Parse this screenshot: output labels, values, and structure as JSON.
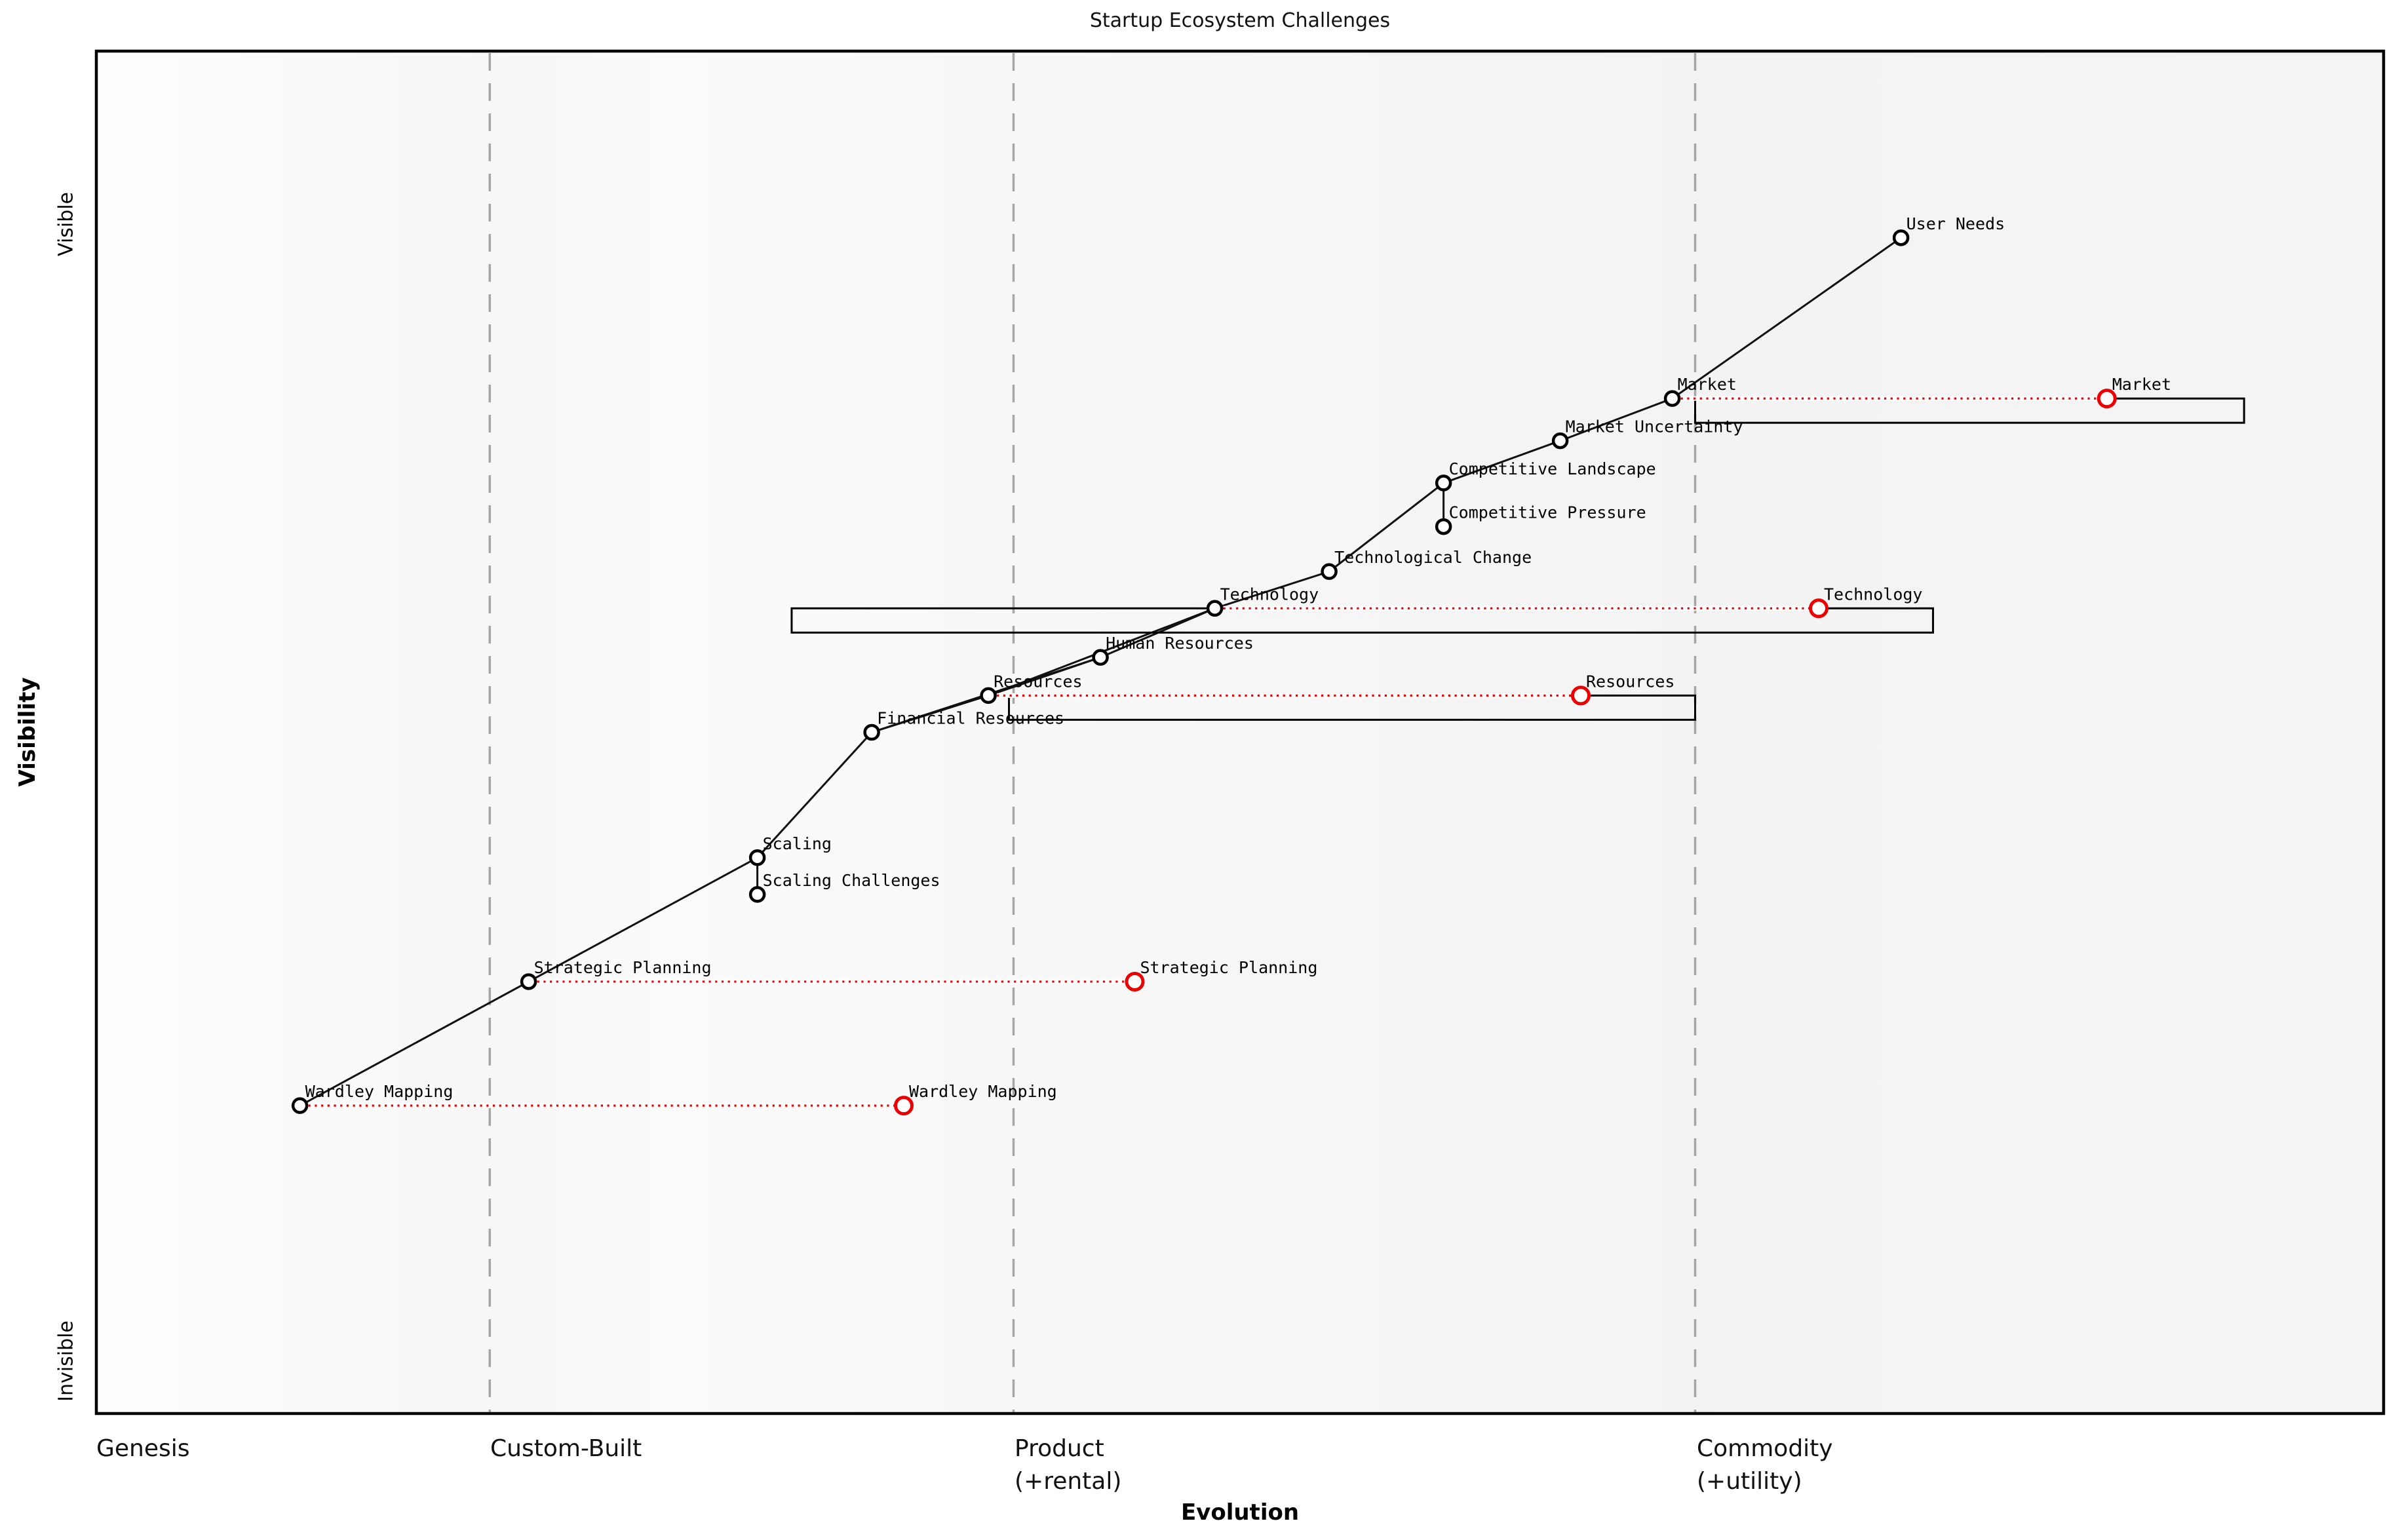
{
  "title": "Startup Ecosystem Challenges",
  "axis": {
    "x_label": "Evolution",
    "y_label": "Visibility",
    "y_tick_top": "Visible",
    "y_tick_bottom": "Invisible",
    "stages": [
      "Genesis",
      "Custom-Built",
      "Product\n(+rental)",
      "Commodity\n(+utility)"
    ]
  },
  "chart_data": {
    "type": "wardley-map",
    "title": "Startup Ecosystem Challenges",
    "xlabel": "Evolution",
    "ylabel": "Visibility",
    "x_range": [
      0,
      1
    ],
    "y_range": [
      0,
      1
    ],
    "grid": "vertical-stage-boundaries",
    "stages": [
      {
        "label": "Genesis",
        "x": 0.0
      },
      {
        "label": "Custom-Built",
        "x": 0.172
      },
      {
        "label": "Product\n(+rental)",
        "x": 0.401
      },
      {
        "label": "Commodity\n(+utility)",
        "x": 0.699
      }
    ],
    "y_ticks": [
      {
        "label": "Visible",
        "y": 0.873
      },
      {
        "label": "Invisible",
        "y": 0.039
      }
    ],
    "nodes": [
      {
        "id": "user-needs",
        "label": "User Needs",
        "evolution": 0.789,
        "visibility": 0.863
      },
      {
        "id": "market",
        "label": "Market",
        "evolution": 0.689,
        "visibility": 0.745
      },
      {
        "id": "market-uncertainty",
        "label": "Market Uncertainty",
        "evolution": 0.64,
        "visibility": 0.714
      },
      {
        "id": "competitive-landscape",
        "label": "Competitive Landscape",
        "evolution": 0.589,
        "visibility": 0.683
      },
      {
        "id": "competitive-pressure",
        "label": "Competitive Pressure",
        "evolution": 0.589,
        "visibility": 0.651
      },
      {
        "id": "technological-change",
        "label": "Technological Change",
        "evolution": 0.539,
        "visibility": 0.618
      },
      {
        "id": "technology",
        "label": "Technology",
        "evolution": 0.489,
        "visibility": 0.591
      },
      {
        "id": "human-resources",
        "label": "Human Resources",
        "evolution": 0.439,
        "visibility": 0.555
      },
      {
        "id": "resources",
        "label": "Resources",
        "evolution": 0.39,
        "visibility": 0.527
      },
      {
        "id": "financial-resources",
        "label": "Financial Resources",
        "evolution": 0.339,
        "visibility": 0.5
      },
      {
        "id": "scaling",
        "label": "Scaling",
        "evolution": 0.289,
        "visibility": 0.408
      },
      {
        "id": "scaling-challenges",
        "label": "Scaling Challenges",
        "evolution": 0.289,
        "visibility": 0.381
      },
      {
        "id": "strategic-planning",
        "label": "Strategic Planning",
        "evolution": 0.189,
        "visibility": 0.317
      },
      {
        "id": "wardley-mapping",
        "label": "Wardley Mapping",
        "evolution": 0.089,
        "visibility": 0.226
      }
    ],
    "edges": [
      [
        "wardley-mapping",
        "strategic-planning"
      ],
      [
        "strategic-planning",
        "scaling"
      ],
      [
        "scaling",
        "scaling-challenges"
      ],
      [
        "scaling",
        "financial-resources"
      ],
      [
        "financial-resources",
        "resources"
      ],
      [
        "financial-resources",
        "human-resources"
      ],
      [
        "resources",
        "human-resources"
      ],
      [
        "resources",
        "technology"
      ],
      [
        "human-resources",
        "technology"
      ],
      [
        "technology",
        "technological-change"
      ],
      [
        "technological-change",
        "competitive-landscape"
      ],
      [
        "competitive-landscape",
        "competitive-pressure"
      ],
      [
        "competitive-landscape",
        "market-uncertainty"
      ],
      [
        "market-uncertainty",
        "market"
      ],
      [
        "market",
        "user-needs"
      ]
    ],
    "evolutions": [
      {
        "id": "market",
        "label": "Market",
        "to_evolution": 0.879
      },
      {
        "id": "technology",
        "label": "Technology",
        "to_evolution": 0.753
      },
      {
        "id": "resources",
        "label": "Resources",
        "to_evolution": 0.649
      },
      {
        "id": "strategic-planning",
        "label": "Strategic Planning",
        "to_evolution": 0.454
      },
      {
        "id": "wardley-mapping",
        "label": "Wardley Mapping",
        "to_evolution": 0.353
      }
    ],
    "pipelines": [
      {
        "id": "market",
        "x1": 0.699,
        "x2": 0.939
      },
      {
        "id": "technology",
        "x1": 0.304,
        "x2": 0.803
      },
      {
        "id": "resources",
        "x1": 0.399,
        "x2": 0.699
      }
    ]
  },
  "style": {
    "node_color": "#000000",
    "evolved_color": "#ee0000",
    "edge_color": "#111111",
    "gridline_color": "#a6a6a6",
    "box_color": "#000000",
    "label_color": "#000000",
    "plot_bg_left": "#ffffff",
    "plot_bg_right": "#f2f2f2"
  }
}
